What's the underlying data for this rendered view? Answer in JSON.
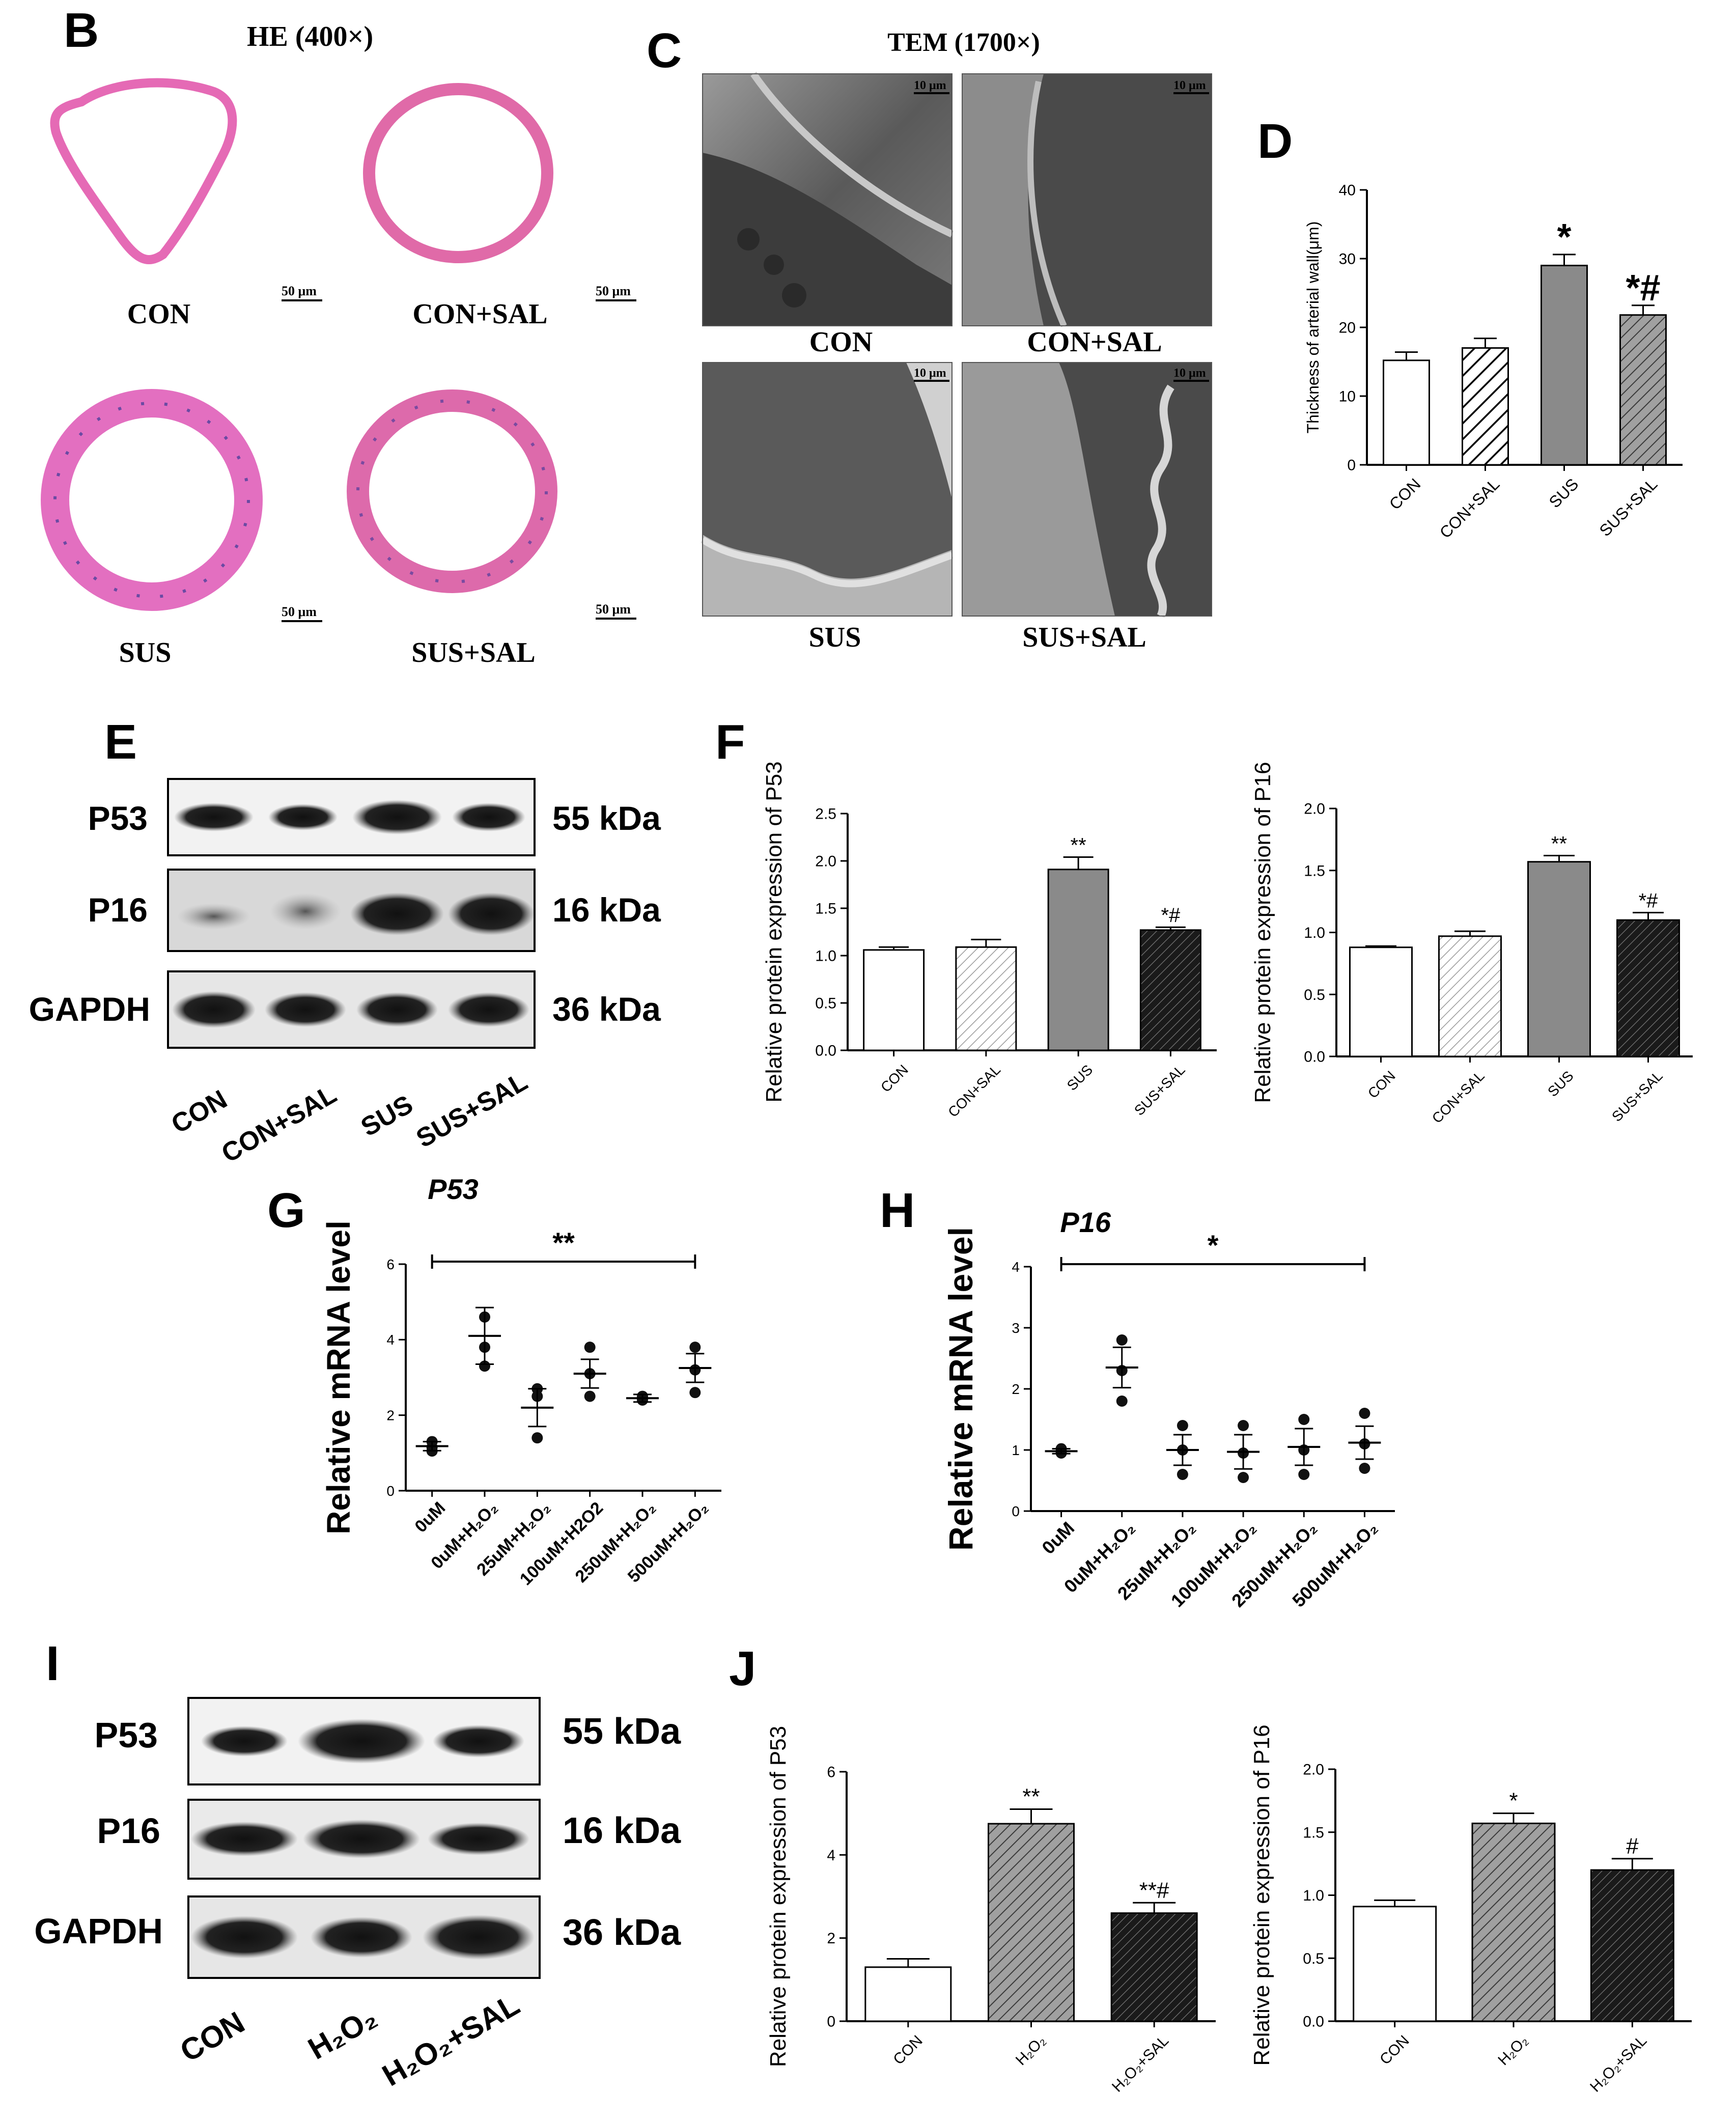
{
  "panel_letters": {
    "B": "B",
    "C": "C",
    "D": "D",
    "E": "E",
    "F": "F",
    "G": "G",
    "H": "H",
    "I": "I",
    "J": "J"
  },
  "panel_B": {
    "title": "HE (400×)",
    "scale_bar": "50 μm",
    "labels": [
      "CON",
      "CON+SAL",
      "SUS",
      "SUS+SAL"
    ]
  },
  "panel_C": {
    "title": "TEM (1700×)",
    "scale_bar": "10 μm",
    "labels": [
      "CON",
      "CON+SAL",
      "SUS",
      "SUS+SAL"
    ]
  },
  "panel_E": {
    "bands": [
      {
        "label": "P53",
        "kda": "55 kDa"
      },
      {
        "label": "P16",
        "kda": "16 kDa"
      },
      {
        "label": "GAPDH",
        "kda": "36 kDa"
      }
    ],
    "lanes": [
      "CON",
      "CON+SAL",
      "SUS",
      "SUS+SAL"
    ]
  },
  "panel_I": {
    "bands": [
      {
        "label": "P53",
        "kda": "55 kDa"
      },
      {
        "label": "P16",
        "kda": "16 kDa"
      },
      {
        "label": "GAPDH",
        "kda": "36 kDa"
      }
    ],
    "lanes": [
      "CON",
      "H₂O₂",
      "H₂O₂+SAL"
    ]
  },
  "chart_data": [
    {
      "id": "D",
      "type": "bar",
      "title": "",
      "ylabel": "Thickness of arterial wall(μm)",
      "categories": [
        "CON",
        "CON+SAL",
        "SUS",
        "SUS+SAL"
      ],
      "values": [
        15.2,
        17.0,
        29.0,
        21.8
      ],
      "errors": [
        1.2,
        1.4,
        1.6,
        1.4
      ],
      "annotations": [
        "",
        "",
        "*",
        "*#"
      ],
      "ylim": [
        0,
        40
      ],
      "yticks": [
        0,
        10,
        20,
        30,
        40
      ],
      "fills": [
        "white",
        "hatch",
        "gray",
        "hatch-gray"
      ]
    },
    {
      "id": "F1",
      "type": "bar",
      "title": "",
      "ylabel": "Relative protein expression of P53",
      "categories": [
        "CON",
        "CON+SAL",
        "SUS",
        "SUS+SAL"
      ],
      "values": [
        1.06,
        1.09,
        1.91,
        1.27
      ],
      "errors": [
        0.03,
        0.08,
        0.13,
        0.03
      ],
      "annotations": [
        "",
        "",
        "**",
        "*#"
      ],
      "ylim": [
        0,
        2.5
      ],
      "yticks": [
        "0.0",
        "0.5",
        "1.0",
        "1.5",
        "2.0",
        "2.5"
      ],
      "fills": [
        "white",
        "hatch-light",
        "gray",
        "hatch-dark"
      ]
    },
    {
      "id": "F2",
      "type": "bar",
      "title": "",
      "ylabel": "Relative protein expression of P16",
      "categories": [
        "CON",
        "CON+SAL",
        "SUS",
        "SUS+SAL"
      ],
      "values": [
        0.88,
        0.97,
        1.57,
        1.1
      ],
      "errors": [
        0.01,
        0.04,
        0.05,
        0.06
      ],
      "annotations": [
        "",
        "",
        "**",
        "*#"
      ],
      "ylim": [
        0,
        2.0
      ],
      "yticks": [
        "0.0",
        "0.5",
        "1.0",
        "1.5",
        "2.0"
      ],
      "fills": [
        "white",
        "hatch-light",
        "gray",
        "hatch-dark"
      ]
    },
    {
      "id": "G",
      "type": "scatter",
      "title": "P53",
      "ylabel": "Relative mRNA level",
      "categories": [
        "0uM",
        "0uM+H₂O₂",
        "25uM+H₂O₂",
        "100uM+H2O2",
        "250uM+H₂O₂",
        "500uM+H₂O₂"
      ],
      "points": [
        [
          1.3,
          1.15,
          1.05
        ],
        [
          4.6,
          3.8,
          3.3
        ],
        [
          2.7,
          2.5,
          1.4
        ],
        [
          3.8,
          3.1,
          2.5
        ],
        [
          2.5,
          2.45,
          2.4
        ],
        [
          3.8,
          3.2,
          2.6
        ]
      ],
      "means": [
        1.18,
        4.1,
        2.2,
        3.1,
        2.45,
        3.25
      ],
      "sems": [
        0.12,
        0.75,
        0.5,
        0.38,
        0.1,
        0.38
      ],
      "ylim": [
        0,
        6
      ],
      "yticks": [
        0,
        2,
        4,
        6
      ],
      "bracket_label": "**"
    },
    {
      "id": "H",
      "type": "scatter",
      "title": "P16",
      "ylabel": "Relative mRNA level",
      "categories": [
        "0uM",
        "0uM+H₂O₂",
        "25uM+H₂O₂",
        "100uM+H₂O₂",
        "250uM+H₂O₂",
        "500uM+H₂O₂"
      ],
      "points": [
        [
          1.02,
          0.97,
          0.95
        ],
        [
          2.8,
          2.3,
          1.8
        ],
        [
          1.4,
          1.0,
          0.6
        ],
        [
          1.4,
          0.95,
          0.55
        ],
        [
          1.5,
          1.0,
          0.6
        ],
        [
          1.6,
          1.1,
          0.7
        ]
      ],
      "means": [
        0.98,
        2.35,
        1.0,
        0.97,
        1.05,
        1.12
      ],
      "sems": [
        0.04,
        0.33,
        0.25,
        0.28,
        0.3,
        0.27
      ],
      "ylim": [
        0,
        4
      ],
      "yticks": [
        0,
        1,
        2,
        3,
        4
      ],
      "bracket_label": "*"
    },
    {
      "id": "J1",
      "type": "bar",
      "title": "",
      "ylabel": "Relative protein expression of P53",
      "categories": [
        "CON",
        "H₂O₂",
        "H₂O₂+SAL"
      ],
      "values": [
        1.3,
        4.75,
        2.6
      ],
      "errors": [
        0.2,
        0.35,
        0.25
      ],
      "annotations": [
        "",
        "**",
        "**#"
      ],
      "ylim": [
        0,
        6
      ],
      "yticks": [
        0,
        2,
        4,
        6
      ],
      "fills": [
        "white",
        "hatch-gray",
        "hatch-dark"
      ]
    },
    {
      "id": "J2",
      "type": "bar",
      "title": "",
      "ylabel": "Relative protein expression of P16",
      "categories": [
        "CON",
        "H₂O₂",
        "H₂O₂+SAL"
      ],
      "values": [
        0.91,
        1.57,
        1.2
      ],
      "errors": [
        0.05,
        0.08,
        0.09
      ],
      "annotations": [
        "",
        "*",
        "#"
      ],
      "ylim": [
        0,
        2.0
      ],
      "yticks": [
        "0.0",
        "0.5",
        "1.0",
        "1.5",
        "2.0"
      ],
      "fills": [
        "white",
        "hatch-gray",
        "hatch-dark"
      ]
    }
  ]
}
